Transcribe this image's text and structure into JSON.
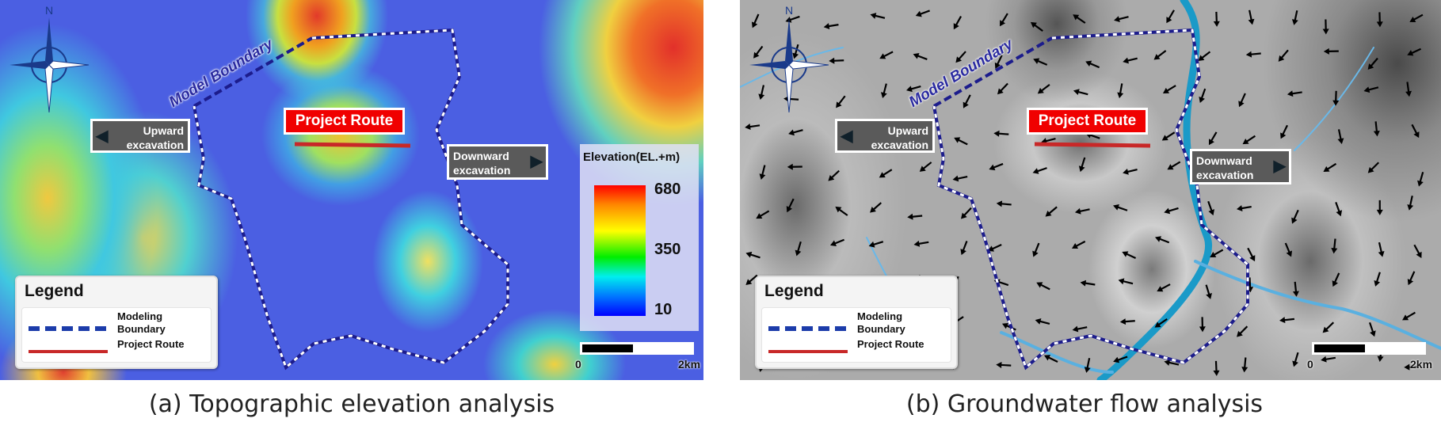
{
  "panels": [
    {
      "caption": "(a) Topographic elevation analysis",
      "model_boundary_label": "Model Boundary",
      "project_route_label": "Project Route",
      "upward": {
        "line1": "Upward",
        "line2": "excavation",
        "icon": "arrow-left-icon"
      },
      "downward": {
        "line1": "Downward",
        "line2": "excavation",
        "icon": "arrow-right-icon"
      },
      "north_label": "N",
      "elevation_legend": {
        "title": "Elevation(EL.+m)",
        "max": "680",
        "mid": "350",
        "min": "10",
        "colormap": [
          "#ff0000",
          "#ffff00",
          "#00ee00",
          "#00eeee",
          "#0000ff"
        ]
      },
      "legend": {
        "title": "Legend",
        "boundary_label_1": "Modeling",
        "boundary_label_2": "Boundary",
        "route_label": "Project Route"
      },
      "scale": {
        "start": "0",
        "end": "2km"
      }
    },
    {
      "caption": "(b) Groundwater flow analysis",
      "model_boundary_label": "Model Boundary",
      "project_route_label": "Project Route",
      "upward": {
        "line1": "Upward",
        "line2": "excavation",
        "icon": "arrow-left-icon"
      },
      "downward": {
        "line1": "Downward",
        "line2": "excavation",
        "icon": "arrow-right-icon"
      },
      "north_label": "N",
      "legend": {
        "title": "Legend",
        "boundary_label_1": "Modeling",
        "boundary_label_2": "Boundary",
        "route_label": "Project Route"
      },
      "scale": {
        "start": "0",
        "end": "2km"
      }
    }
  ],
  "colors": {
    "boundary": "#1c1c8c",
    "route": "#d02020",
    "river": "#1a9ac8",
    "route_label_bg": "#f00000"
  }
}
